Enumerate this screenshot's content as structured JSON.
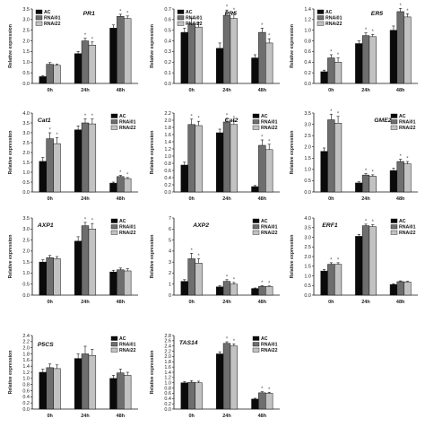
{
  "colors": {
    "AC": "#0a0a0a",
    "RNAi01": "#6e6e6e",
    "RNAi22": "#c2c2c2",
    "axis": "#111111",
    "star": "#555555"
  },
  "y_axis_label": "Relative expression",
  "legend": [
    "AC",
    "RNAi01",
    "RNAi22"
  ],
  "chart_data": [
    {
      "type": "bar",
      "title": "PR1",
      "ylabel": "Relative expression",
      "categories": [
        "0h",
        "24h",
        "48h"
      ],
      "ylim": [
        0,
        3.5
      ],
      "yticks": [
        "0.0",
        "0.5",
        "1.0",
        "1.5",
        "2.0",
        "2.5",
        "3.0",
        "3.5"
      ],
      "ytick_values": [
        0,
        0.5,
        1,
        1.5,
        2,
        2.5,
        3,
        3.5
      ],
      "series": [
        {
          "name": "AC",
          "values": [
            0.32,
            1.4,
            2.6
          ]
        },
        {
          "name": "RNAi01",
          "values": [
            0.9,
            2.0,
            3.15
          ]
        },
        {
          "name": "RNAi22",
          "values": [
            0.85,
            1.8,
            3.05
          ]
        }
      ],
      "error": [
        [
          0.05,
          0.1,
          0.15
        ],
        [
          0.08,
          0.12,
          0.1
        ],
        [
          0.06,
          0.15,
          0.12
        ]
      ],
      "significant": [
        [
          false,
          true,
          true
        ],
        [
          false,
          true,
          true
        ]
      ],
      "legend_position": "top-left"
    },
    {
      "type": "bar",
      "title": "PR5",
      "ylabel": "Relative expression",
      "categories": [
        "0h",
        "24h",
        "48h"
      ],
      "ylim": [
        0,
        0.7
      ],
      "yticks": [
        "0.0",
        "0.1",
        "0.2",
        "0.3",
        "0.4",
        "0.5",
        "0.6",
        "0.7"
      ],
      "ytick_values": [
        0,
        0.1,
        0.2,
        0.3,
        0.4,
        0.5,
        0.6,
        0.7
      ],
      "series": [
        {
          "name": "AC",
          "values": [
            0.48,
            0.33,
            0.24
          ]
        },
        {
          "name": "RNAi01",
          "values": [
            0.56,
            0.64,
            0.48
          ]
        },
        {
          "name": "RNAi22",
          "values": [
            0.53,
            0.61,
            0.38
          ]
        }
      ],
      "error": [
        [
          0.04,
          0.05,
          0.03
        ],
        [
          0.05,
          0.05,
          0.04
        ],
        [
          0.04,
          0.05,
          0.04
        ]
      ],
      "significant": [
        [
          false,
          true,
          true
        ],
        [
          false,
          true,
          true
        ]
      ],
      "legend_position": "top-left"
    },
    {
      "type": "bar",
      "title": "ER5",
      "ylabel": "Relative expression",
      "categories": [
        "0h",
        "24h",
        "48h"
      ],
      "ylim": [
        0,
        1.4
      ],
      "yticks": [
        "0.0",
        "0.2",
        "0.4",
        "0.6",
        "0.8",
        "1.0",
        "1.2",
        "1.4"
      ],
      "ytick_values": [
        0,
        0.2,
        0.4,
        0.6,
        0.8,
        1.0,
        1.2,
        1.4
      ],
      "series": [
        {
          "name": "AC",
          "values": [
            0.22,
            0.75,
            1.0
          ]
        },
        {
          "name": "RNAi01",
          "values": [
            0.48,
            0.9,
            1.35
          ]
        },
        {
          "name": "RNAi22",
          "values": [
            0.4,
            0.88,
            1.25
          ]
        }
      ],
      "error": [
        [
          0.03,
          0.05,
          0.08
        ],
        [
          0.06,
          0.05,
          0.06
        ],
        [
          0.08,
          0.04,
          0.06
        ]
      ],
      "significant": [
        [
          true,
          true,
          true
        ],
        [
          true,
          true,
          true
        ]
      ],
      "legend_position": "top-left"
    },
    {
      "type": "bar",
      "title": "Cat1",
      "ylabel": "Relative expression",
      "categories": [
        "0h",
        "24h",
        "48h"
      ],
      "ylim": [
        0,
        4.0
      ],
      "yticks": [
        "0.0",
        "0.5",
        "1.0",
        "1.5",
        "2.0",
        "2.5",
        "3.0",
        "3.5",
        "4.0"
      ],
      "ytick_values": [
        0,
        0.5,
        1,
        1.5,
        2,
        2.5,
        3,
        3.5,
        4
      ],
      "series": [
        {
          "name": "AC",
          "values": [
            1.55,
            3.15,
            0.45
          ]
        },
        {
          "name": "RNAi01",
          "values": [
            2.7,
            3.5,
            0.78
          ]
        },
        {
          "name": "RNAi22",
          "values": [
            2.45,
            3.45,
            0.68
          ]
        }
      ],
      "error": [
        [
          0.2,
          0.2,
          0.05
        ],
        [
          0.3,
          0.2,
          0.06
        ],
        [
          0.3,
          0.25,
          0.05
        ]
      ],
      "significant": [
        [
          true,
          true,
          true
        ],
        [
          true,
          true,
          true
        ]
      ],
      "legend_position": "top-right"
    },
    {
      "type": "bar",
      "title": "Cat2",
      "ylabel": "Relative expression",
      "categories": [
        "0h",
        "24h",
        "48h"
      ],
      "ylim": [
        0,
        2.2
      ],
      "yticks": [
        "0.0",
        "0.2",
        "0.4",
        "0.6",
        "0.8",
        "1.0",
        "1.2",
        "1.4",
        "1.6",
        "1.8",
        "2.0",
        "2.2"
      ],
      "ytick_values": [
        0,
        0.2,
        0.4,
        0.6,
        0.8,
        1.0,
        1.2,
        1.4,
        1.6,
        1.8,
        2.0,
        2.2
      ],
      "series": [
        {
          "name": "AC",
          "values": [
            0.75,
            1.65,
            0.15
          ]
        },
        {
          "name": "RNAi01",
          "values": [
            1.88,
            1.95,
            1.3
          ]
        },
        {
          "name": "RNAi22",
          "values": [
            1.85,
            1.88,
            1.18
          ]
        }
      ],
      "error": [
        [
          0.08,
          0.1,
          0.03
        ],
        [
          0.15,
          0.1,
          0.15
        ],
        [
          0.12,
          0.1,
          0.15
        ]
      ],
      "significant": [
        [
          true,
          true,
          true
        ],
        [
          true,
          true,
          true
        ]
      ],
      "legend_position": "top-right"
    },
    {
      "type": "bar",
      "title": "GME2",
      "ylabel": "Relative expression",
      "categories": [
        "0h",
        "24h",
        "48h"
      ],
      "ylim": [
        0,
        3.5
      ],
      "yticks": [
        "0.0",
        "0.5",
        "1.0",
        "1.5",
        "2.0",
        "2.5",
        "3.0",
        "3.5"
      ],
      "ytick_values": [
        0,
        0.5,
        1,
        1.5,
        2,
        2.5,
        3,
        3.5
      ],
      "series": [
        {
          "name": "AC",
          "values": [
            1.8,
            0.4,
            0.95
          ]
        },
        {
          "name": "RNAi01",
          "values": [
            3.2,
            0.75,
            1.35
          ]
        },
        {
          "name": "RNAi22",
          "values": [
            3.05,
            0.7,
            1.25
          ]
        }
      ],
      "error": [
        [
          0.15,
          0.05,
          0.1
        ],
        [
          0.25,
          0.06,
          0.1
        ],
        [
          0.3,
          0.06,
          0.1
        ]
      ],
      "significant": [
        [
          true,
          true,
          true
        ],
        [
          true,
          true,
          true
        ]
      ],
      "legend_position": "top-right"
    },
    {
      "type": "bar",
      "title": "AXP1",
      "ylabel": "Relative expression",
      "categories": [
        "0h",
        "24h",
        "48h"
      ],
      "ylim": [
        0,
        3.5
      ],
      "yticks": [
        "0.0",
        "0.5",
        "1.0",
        "1.5",
        "2.0",
        "2.5",
        "3.0",
        "3.5"
      ],
      "ytick_values": [
        0,
        0.5,
        1,
        1.5,
        2,
        2.5,
        3,
        3.5
      ],
      "series": [
        {
          "name": "AC",
          "values": [
            1.5,
            2.45,
            1.05
          ]
        },
        {
          "name": "RNAi01",
          "values": [
            1.7,
            3.15,
            1.15
          ]
        },
        {
          "name": "RNAi22",
          "values": [
            1.65,
            3.0,
            1.1
          ]
        }
      ],
      "error": [
        [
          0.1,
          0.2,
          0.08
        ],
        [
          0.1,
          0.15,
          0.08
        ],
        [
          0.1,
          0.25,
          0.1
        ]
      ],
      "significant": [
        [
          false,
          true,
          false
        ],
        [
          false,
          true,
          false
        ]
      ],
      "legend_position": "top-right"
    },
    {
      "type": "bar",
      "title": "AXP2",
      "ylabel": "Relative expression",
      "categories": [
        "0h",
        "24h",
        "48h"
      ],
      "ylim": [
        0,
        7
      ],
      "yticks": [
        "0",
        "1",
        "2",
        "3",
        "4",
        "5",
        "6",
        "7"
      ],
      "ytick_values": [
        0,
        1,
        2,
        3,
        4,
        5,
        6,
        7
      ],
      "series": [
        {
          "name": "AC",
          "values": [
            1.25,
            0.75,
            0.6
          ]
        },
        {
          "name": "RNAi01",
          "values": [
            3.3,
            1.25,
            0.8
          ]
        },
        {
          "name": "RNAi22",
          "values": [
            2.9,
            1.0,
            0.78
          ]
        }
      ],
      "error": [
        [
          0.15,
          0.1,
          0.05
        ],
        [
          0.5,
          0.15,
          0.05
        ],
        [
          0.4,
          0.15,
          0.05
        ]
      ],
      "significant": [
        [
          true,
          true,
          true
        ],
        [
          true,
          true,
          true
        ]
      ],
      "legend_position": "top-right"
    },
    {
      "type": "bar",
      "title": "ERF1",
      "ylabel": "Relative expression",
      "categories": [
        "0h",
        "24h",
        "48h"
      ],
      "ylim": [
        0,
        4.0
      ],
      "yticks": [
        "0.0",
        "0.5",
        "1.0",
        "1.5",
        "2.0",
        "2.5",
        "3.0",
        "3.5",
        "4.0"
      ],
      "ytick_values": [
        0,
        0.5,
        1,
        1.5,
        2,
        2.5,
        3,
        3.5,
        4
      ],
      "series": [
        {
          "name": "AC",
          "values": [
            1.25,
            3.05,
            0.55
          ]
        },
        {
          "name": "RNAi01",
          "values": [
            1.6,
            3.6,
            0.7
          ]
        },
        {
          "name": "RNAi22",
          "values": [
            1.6,
            3.55,
            0.68
          ]
        }
      ],
      "error": [
        [
          0.08,
          0.1,
          0.04
        ],
        [
          0.08,
          0.08,
          0.04
        ],
        [
          0.08,
          0.1,
          0.04
        ]
      ],
      "significant": [
        [
          true,
          true,
          false
        ],
        [
          true,
          true,
          false
        ]
      ],
      "legend_position": "top-right"
    },
    {
      "type": "bar",
      "title": "P5CS",
      "ylabel": "Relative expression",
      "categories": [
        "0h",
        "24h",
        "48h"
      ],
      "ylim": [
        0,
        2.4
      ],
      "yticks": [
        "0.0",
        "0.2",
        "0.4",
        "0.6",
        "0.8",
        "1.0",
        "1.2",
        "1.4",
        "1.6",
        "1.8",
        "2.0",
        "2.2",
        "2.4"
      ],
      "ytick_values": [
        0,
        0.2,
        0.4,
        0.6,
        0.8,
        1.0,
        1.2,
        1.4,
        1.6,
        1.8,
        2.0,
        2.2,
        2.4
      ],
      "series": [
        {
          "name": "AC",
          "values": [
            1.2,
            1.65,
            1.0
          ]
        },
        {
          "name": "RNAi01",
          "values": [
            1.35,
            1.8,
            1.18
          ]
        },
        {
          "name": "RNAi22",
          "values": [
            1.32,
            1.75,
            1.1
          ]
        }
      ],
      "error": [
        [
          0.1,
          0.15,
          0.1
        ],
        [
          0.12,
          0.25,
          0.12
        ],
        [
          0.12,
          0.2,
          0.1
        ]
      ],
      "significant": [
        [
          false,
          false,
          false
        ],
        [
          false,
          false,
          false
        ]
      ],
      "legend_position": "top-right"
    },
    {
      "type": "bar",
      "title": "TAS14",
      "ylabel": "Relative expression",
      "categories": [
        "0h",
        "24h",
        "48h"
      ],
      "ylim": [
        0,
        2.8
      ],
      "yticks": [
        "0.0",
        "0.2",
        "0.4",
        "0.6",
        "0.8",
        "1.0",
        "1.2",
        "1.4",
        "1.6",
        "1.8",
        "2.0",
        "2.2",
        "2.4",
        "2.6",
        "2.8"
      ],
      "ytick_values": [
        0,
        0.2,
        0.4,
        0.6,
        0.8,
        1.0,
        1.2,
        1.4,
        1.6,
        1.8,
        2.0,
        2.2,
        2.4,
        2.6,
        2.8
      ],
      "series": [
        {
          "name": "AC",
          "values": [
            1.0,
            2.1,
            0.38
          ]
        },
        {
          "name": "RNAi01",
          "values": [
            1.02,
            2.5,
            0.62
          ]
        },
        {
          "name": "RNAi22",
          "values": [
            1.0,
            2.4,
            0.6
          ]
        }
      ],
      "error": [
        [
          0.05,
          0.08,
          0.03
        ],
        [
          0.06,
          0.06,
          0.04
        ],
        [
          0.06,
          0.08,
          0.04
        ]
      ],
      "significant": [
        [
          false,
          true,
          true
        ],
        [
          false,
          true,
          true
        ]
      ],
      "legend_position": "top-right"
    }
  ]
}
